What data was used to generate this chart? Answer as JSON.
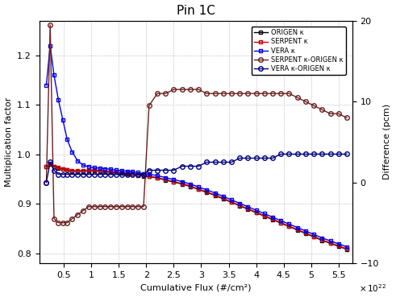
{
  "title": "Pin 1C",
  "xlabel": "Cumulative Flux (#/cm²)",
  "ylabel_left": "Multiplication factor",
  "ylabel_right": "Difference (pcm)",
  "xlim": [
    0.05,
    5.75
  ],
  "ylim_left": [
    0.78,
    1.27
  ],
  "ylim_right": [
    -10,
    20
  ],
  "xticks": [
    0.5,
    1.0,
    1.5,
    2.0,
    2.5,
    3.0,
    3.5,
    4.0,
    4.5,
    5.0,
    5.5
  ],
  "xtick_labels": [
    "0.5",
    "1",
    "1.5",
    "2",
    "2.5",
    "3",
    "3.5",
    "4",
    "4.5",
    "5",
    "5.5"
  ],
  "yticks_left": [
    0.8,
    0.9,
    1.0,
    1.1,
    1.2
  ],
  "yticks_right": [
    -10,
    0,
    10,
    20
  ],
  "origen_k_x": [
    0.18,
    0.25,
    0.32,
    0.4,
    0.48,
    0.56,
    0.65,
    0.75,
    0.85,
    0.95,
    1.05,
    1.15,
    1.25,
    1.35,
    1.45,
    1.55,
    1.65,
    1.75,
    1.85,
    1.95,
    2.05,
    2.2,
    2.35,
    2.5,
    2.65,
    2.8,
    2.95,
    3.1,
    3.25,
    3.4,
    3.55,
    3.7,
    3.85,
    4.0,
    4.15,
    4.3,
    4.45,
    4.6,
    4.75,
    4.9,
    5.05,
    5.2,
    5.35,
    5.5,
    5.65
  ],
  "origen_k_y": [
    0.975,
    0.98,
    0.975,
    0.972,
    0.97,
    0.968,
    0.966,
    0.966,
    0.966,
    0.967,
    0.967,
    0.966,
    0.965,
    0.964,
    0.963,
    0.962,
    0.961,
    0.96,
    0.958,
    0.956,
    0.955,
    0.952,
    0.948,
    0.944,
    0.94,
    0.935,
    0.929,
    0.923,
    0.917,
    0.91,
    0.903,
    0.896,
    0.889,
    0.882,
    0.875,
    0.868,
    0.861,
    0.854,
    0.847,
    0.84,
    0.833,
    0.826,
    0.82,
    0.814,
    0.808
  ],
  "serpent_k_x": [
    0.18,
    0.25,
    0.32,
    0.4,
    0.48,
    0.56,
    0.65,
    0.75,
    0.85,
    0.95,
    1.05,
    1.15,
    1.25,
    1.35,
    1.45,
    1.55,
    1.65,
    1.75,
    1.85,
    1.95,
    2.05,
    2.2,
    2.35,
    2.5,
    2.65,
    2.8,
    2.95,
    3.1,
    3.25,
    3.4,
    3.55,
    3.7,
    3.85,
    4.0,
    4.15,
    4.3,
    4.45,
    4.6,
    4.75,
    4.9,
    5.05,
    5.2,
    5.35,
    5.5,
    5.65
  ],
  "serpent_k_y": [
    0.975,
    0.981,
    0.976,
    0.973,
    0.971,
    0.969,
    0.967,
    0.967,
    0.967,
    0.968,
    0.968,
    0.967,
    0.966,
    0.965,
    0.964,
    0.963,
    0.962,
    0.961,
    0.959,
    0.957,
    0.956,
    0.953,
    0.949,
    0.945,
    0.941,
    0.936,
    0.93,
    0.924,
    0.918,
    0.911,
    0.904,
    0.897,
    0.89,
    0.883,
    0.876,
    0.869,
    0.862,
    0.855,
    0.848,
    0.841,
    0.834,
    0.827,
    0.821,
    0.815,
    0.809
  ],
  "vera_k_x": [
    0.18,
    0.25,
    0.32,
    0.4,
    0.48,
    0.56,
    0.65,
    0.75,
    0.85,
    0.95,
    1.05,
    1.15,
    1.25,
    1.35,
    1.45,
    1.55,
    1.65,
    1.75,
    1.85,
    1.95,
    2.05,
    2.2,
    2.35,
    2.5,
    2.65,
    2.8,
    2.95,
    3.1,
    3.25,
    3.4,
    3.55,
    3.7,
    3.85,
    4.0,
    4.15,
    4.3,
    4.45,
    4.6,
    4.75,
    4.9,
    5.05,
    5.2,
    5.35,
    5.5,
    5.65
  ],
  "vera_k_y": [
    1.14,
    1.22,
    1.16,
    1.11,
    1.07,
    1.03,
    1.005,
    0.987,
    0.978,
    0.975,
    0.973,
    0.972,
    0.971,
    0.97,
    0.968,
    0.967,
    0.966,
    0.965,
    0.963,
    0.961,
    0.96,
    0.957,
    0.953,
    0.949,
    0.945,
    0.94,
    0.934,
    0.928,
    0.922,
    0.915,
    0.908,
    0.901,
    0.894,
    0.887,
    0.88,
    0.873,
    0.866,
    0.859,
    0.852,
    0.845,
    0.838,
    0.831,
    0.825,
    0.819,
    0.813
  ],
  "serpent_diff_x": [
    0.18,
    0.25,
    0.32,
    0.4,
    0.48,
    0.56,
    0.65,
    0.75,
    0.85,
    0.95,
    1.05,
    1.15,
    1.25,
    1.35,
    1.45,
    1.55,
    1.65,
    1.75,
    1.85,
    1.95,
    2.05,
    2.2,
    2.35,
    2.5,
    2.65,
    2.8,
    2.95,
    3.1,
    3.25,
    3.4,
    3.55,
    3.7,
    3.85,
    4.0,
    4.15,
    4.3,
    4.45,
    4.6,
    4.75,
    4.9,
    5.05,
    5.2,
    5.35,
    5.5,
    5.65
  ],
  "serpent_diff_y": [
    0.0,
    19.5,
    -4.5,
    -5.0,
    -5.0,
    -5.0,
    -4.5,
    -4.0,
    -3.5,
    -3.0,
    -3.0,
    -3.0,
    -3.0,
    -3.0,
    -3.0,
    -3.0,
    -3.0,
    -3.0,
    -3.0,
    -3.0,
    9.5,
    11.0,
    11.0,
    11.5,
    11.5,
    11.5,
    11.5,
    11.0,
    11.0,
    11.0,
    11.0,
    11.0,
    11.0,
    11.0,
    11.0,
    11.0,
    11.0,
    11.0,
    10.5,
    10.0,
    9.5,
    9.0,
    8.5,
    8.5,
    8.0
  ],
  "vera_diff_x": [
    0.18,
    0.25,
    0.32,
    0.4,
    0.48,
    0.56,
    0.65,
    0.75,
    0.85,
    0.95,
    1.05,
    1.15,
    1.25,
    1.35,
    1.45,
    1.55,
    1.65,
    1.75,
    1.85,
    1.95,
    2.05,
    2.2,
    2.35,
    2.5,
    2.65,
    2.8,
    2.95,
    3.1,
    3.25,
    3.4,
    3.55,
    3.7,
    3.85,
    4.0,
    4.15,
    4.3,
    4.45,
    4.6,
    4.75,
    4.9,
    5.05,
    5.2,
    5.35,
    5.5,
    5.65
  ],
  "vera_diff_y": [
    0.0,
    2.5,
    1.5,
    1.0,
    1.0,
    1.0,
    1.0,
    1.0,
    1.0,
    1.0,
    1.0,
    1.0,
    1.0,
    1.0,
    1.0,
    1.0,
    1.0,
    1.0,
    1.0,
    1.0,
    1.5,
    1.5,
    1.5,
    1.5,
    2.0,
    2.0,
    2.0,
    2.5,
    2.5,
    2.5,
    2.5,
    3.0,
    3.0,
    3.0,
    3.0,
    3.0,
    3.5,
    3.5,
    3.5,
    3.5,
    3.5,
    3.5,
    3.5,
    3.5,
    3.5
  ],
  "color_origen": "#000000",
  "color_serpent": "#cc0000",
  "color_vera": "#0000ee",
  "color_serpent_diff": "#6B2020",
  "color_vera_diff": "#000080",
  "marker_square": "s",
  "marker_circle": "o",
  "linewidth": 1.0,
  "markersize": 3.5
}
